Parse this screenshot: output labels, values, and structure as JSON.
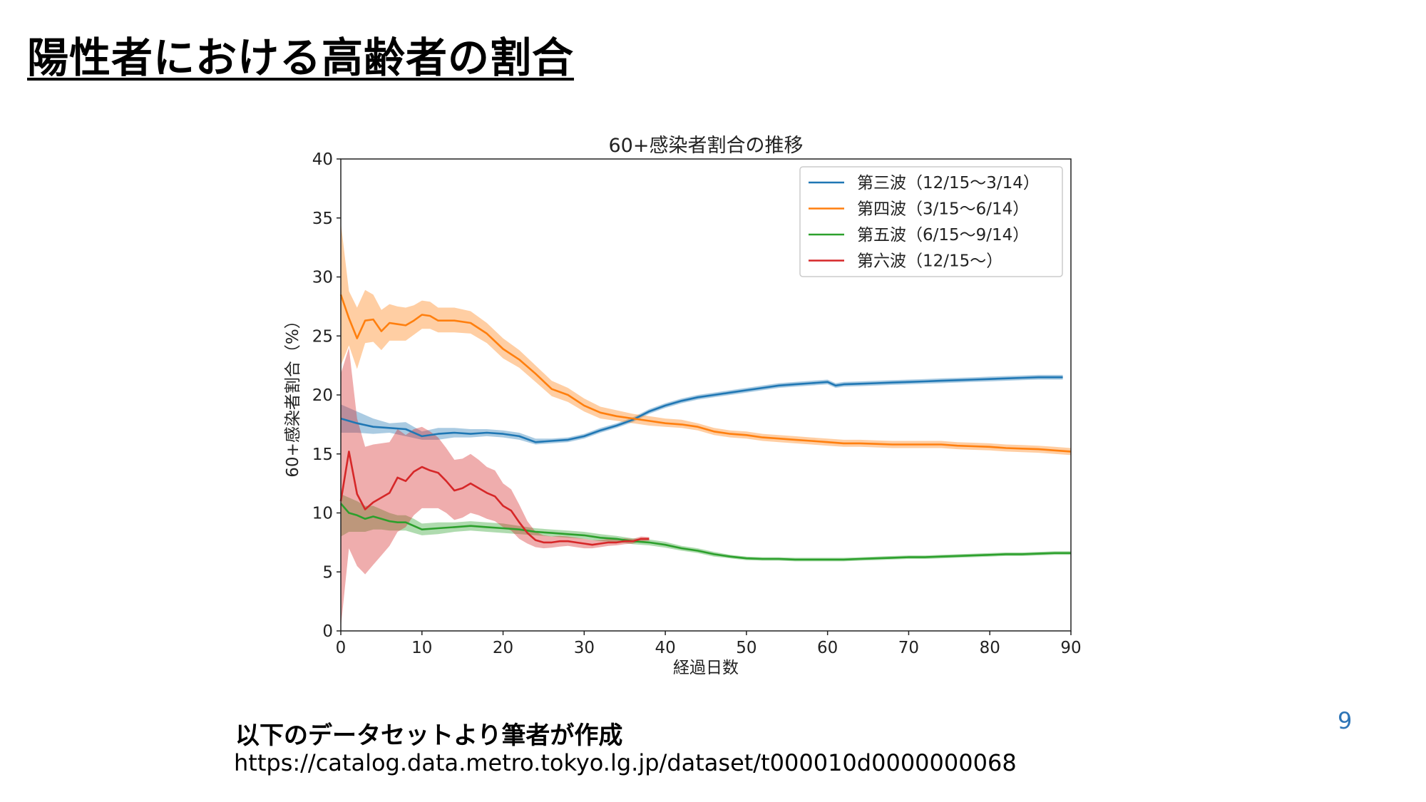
{
  "slide": {
    "title": "陽性者における高齢者の割合",
    "source_label": "以下のデータセットより筆者が作成",
    "source_url": "https://catalog.data.metro.tokyo.lg.jp/dataset/t000010d0000000068",
    "page_number": "9"
  },
  "chart_data": {
    "type": "line",
    "title": "60+感染者割合の推移",
    "xlabel": "経過日数",
    "ylabel": "60+感染者割合（%）",
    "xlim": [
      0,
      90
    ],
    "ylim": [
      0,
      40
    ],
    "xticks": [
      0,
      10,
      20,
      30,
      40,
      50,
      60,
      70,
      80,
      90
    ],
    "yticks": [
      0,
      5,
      10,
      15,
      20,
      25,
      30,
      35,
      40
    ],
    "grid": false,
    "legend_position": "top-right",
    "series": [
      {
        "name": "第三波（12/15〜3/14）",
        "color": "#1f77b4",
        "x": [
          0,
          2,
          4,
          6,
          8,
          10,
          12,
          14,
          16,
          18,
          20,
          22,
          24,
          26,
          28,
          30,
          32,
          34,
          36,
          38,
          40,
          42,
          44,
          46,
          48,
          50,
          52,
          54,
          56,
          58,
          60,
          61,
          62,
          64,
          66,
          68,
          70,
          72,
          74,
          76,
          78,
          80,
          82,
          84,
          86,
          88,
          89
        ],
        "y": [
          18.0,
          17.6,
          17.3,
          17.2,
          17.1,
          16.5,
          16.7,
          16.8,
          16.7,
          16.8,
          16.7,
          16.5,
          16.0,
          16.1,
          16.2,
          16.5,
          17.0,
          17.4,
          17.9,
          18.6,
          19.1,
          19.5,
          19.8,
          20.0,
          20.2,
          20.4,
          20.6,
          20.8,
          20.9,
          21.0,
          21.1,
          20.8,
          20.9,
          20.95,
          21.0,
          21.05,
          21.1,
          21.15,
          21.2,
          21.25,
          21.3,
          21.35,
          21.4,
          21.45,
          21.5,
          21.5,
          21.5
        ],
        "lower": [
          16.8,
          16.8,
          16.7,
          16.8,
          16.5,
          16.2,
          16.2,
          16.4,
          16.4,
          16.5,
          16.4,
          16.2,
          15.8,
          15.9,
          16.0,
          16.3,
          16.8,
          17.2,
          17.7,
          18.4,
          18.9,
          19.3,
          19.6,
          19.8,
          20.0,
          20.2,
          20.4,
          20.6,
          20.7,
          20.8,
          20.9,
          20.6,
          20.7,
          20.75,
          20.8,
          20.85,
          20.9,
          20.95,
          21.0,
          21.05,
          21.1,
          21.15,
          21.2,
          21.25,
          21.3,
          21.3,
          21.3
        ],
        "upper": [
          19.2,
          18.6,
          18.0,
          17.6,
          17.7,
          16.9,
          17.2,
          17.2,
          17.1,
          17.1,
          17.0,
          16.8,
          16.3,
          16.3,
          16.4,
          16.7,
          17.2,
          17.6,
          18.1,
          18.8,
          19.3,
          19.7,
          20.0,
          20.2,
          20.4,
          20.6,
          20.8,
          21.0,
          21.1,
          21.2,
          21.3,
          21.0,
          21.1,
          21.15,
          21.2,
          21.25,
          21.3,
          21.35,
          21.4,
          21.45,
          21.5,
          21.55,
          21.6,
          21.65,
          21.7,
          21.7,
          21.7
        ]
      },
      {
        "name": "第四波（3/15〜6/14）",
        "color": "#ff7f0e",
        "x": [
          0,
          1,
          2,
          3,
          4,
          5,
          6,
          7,
          8,
          9,
          10,
          11,
          12,
          14,
          16,
          18,
          20,
          22,
          24,
          26,
          28,
          30,
          32,
          34,
          36,
          38,
          40,
          42,
          44,
          46,
          48,
          50,
          52,
          54,
          56,
          58,
          60,
          62,
          64,
          66,
          68,
          70,
          72,
          74,
          76,
          78,
          80,
          82,
          84,
          86,
          88,
          90
        ],
        "y": [
          28.5,
          26.5,
          24.8,
          26.3,
          26.4,
          25.4,
          26.1,
          26.0,
          25.9,
          26.3,
          26.8,
          26.7,
          26.3,
          26.3,
          26.1,
          25.2,
          23.9,
          23.0,
          21.8,
          20.5,
          20.0,
          19.1,
          18.5,
          18.2,
          18.0,
          17.8,
          17.6,
          17.5,
          17.3,
          16.9,
          16.7,
          16.6,
          16.4,
          16.3,
          16.2,
          16.1,
          16.0,
          15.9,
          15.9,
          15.85,
          15.8,
          15.8,
          15.8,
          15.8,
          15.7,
          15.65,
          15.6,
          15.5,
          15.45,
          15.4,
          15.3,
          15.2
        ],
        "lower": [
          22.5,
          24.2,
          22.2,
          24.4,
          24.5,
          23.8,
          24.6,
          24.6,
          24.6,
          25.1,
          25.6,
          25.6,
          25.3,
          25.3,
          25.2,
          24.4,
          23.1,
          22.3,
          21.1,
          19.9,
          19.4,
          18.6,
          18.0,
          17.8,
          17.6,
          17.4,
          17.3,
          17.2,
          17.0,
          16.6,
          16.4,
          16.3,
          16.1,
          16.0,
          15.9,
          15.8,
          15.7,
          15.6,
          15.6,
          15.55,
          15.5,
          15.5,
          15.5,
          15.5,
          15.4,
          15.35,
          15.3,
          15.2,
          15.15,
          15.1,
          15.0,
          14.9
        ],
        "upper": [
          34.6,
          28.8,
          27.4,
          28.9,
          28.5,
          27.2,
          27.7,
          27.5,
          27.4,
          27.6,
          28.0,
          27.9,
          27.4,
          27.4,
          27.1,
          26.1,
          24.8,
          23.8,
          22.5,
          21.2,
          20.6,
          19.7,
          19.0,
          18.7,
          18.4,
          18.2,
          18.0,
          17.9,
          17.6,
          17.2,
          17.0,
          16.9,
          16.7,
          16.6,
          16.5,
          16.4,
          16.3,
          16.2,
          16.2,
          16.15,
          16.1,
          16.1,
          16.1,
          16.1,
          16.0,
          15.95,
          15.9,
          15.8,
          15.75,
          15.7,
          15.6,
          15.5
        ]
      },
      {
        "name": "第五波（6/15〜9/14）",
        "color": "#2ca02c",
        "x": [
          0,
          1,
          2,
          3,
          4,
          5,
          6,
          7,
          8,
          9,
          10,
          12,
          14,
          16,
          18,
          20,
          22,
          24,
          26,
          28,
          30,
          32,
          34,
          36,
          38,
          40,
          42,
          44,
          46,
          48,
          50,
          52,
          54,
          56,
          58,
          60,
          62,
          64,
          66,
          68,
          70,
          72,
          74,
          76,
          78,
          80,
          82,
          84,
          86,
          88,
          90
        ],
        "y": [
          10.8,
          10.0,
          9.8,
          9.5,
          9.7,
          9.5,
          9.3,
          9.2,
          9.2,
          8.9,
          8.6,
          8.7,
          8.8,
          8.9,
          8.8,
          8.7,
          8.6,
          8.4,
          8.3,
          8.2,
          8.1,
          7.9,
          7.8,
          7.6,
          7.5,
          7.3,
          7.0,
          6.8,
          6.5,
          6.3,
          6.15,
          6.1,
          6.1,
          6.05,
          6.05,
          6.05,
          6.05,
          6.1,
          6.15,
          6.2,
          6.25,
          6.25,
          6.3,
          6.35,
          6.4,
          6.45,
          6.5,
          6.5,
          6.55,
          6.6,
          6.6
        ],
        "lower": [
          8.0,
          8.4,
          8.4,
          8.4,
          8.6,
          8.6,
          8.5,
          8.5,
          8.5,
          8.3,
          8.1,
          8.2,
          8.4,
          8.5,
          8.4,
          8.3,
          8.2,
          8.1,
          8.0,
          7.9,
          7.8,
          7.6,
          7.55,
          7.35,
          7.25,
          7.05,
          6.8,
          6.6,
          6.3,
          6.15,
          6.0,
          5.95,
          5.95,
          5.9,
          5.9,
          5.9,
          5.9,
          5.95,
          6.0,
          6.05,
          6.1,
          6.1,
          6.15,
          6.2,
          6.25,
          6.3,
          6.35,
          6.35,
          6.4,
          6.45,
          6.45
        ],
        "upper": [
          11.6,
          11.3,
          11.0,
          10.6,
          10.6,
          10.3,
          10.0,
          9.8,
          9.8,
          9.5,
          9.1,
          9.2,
          9.2,
          9.3,
          9.2,
          9.1,
          8.9,
          8.7,
          8.6,
          8.5,
          8.4,
          8.2,
          8.05,
          7.85,
          7.75,
          7.55,
          7.2,
          7.0,
          6.7,
          6.45,
          6.3,
          6.25,
          6.25,
          6.2,
          6.2,
          6.2,
          6.2,
          6.25,
          6.3,
          6.35,
          6.4,
          6.4,
          6.45,
          6.5,
          6.55,
          6.6,
          6.65,
          6.65,
          6.7,
          6.75,
          6.75
        ]
      },
      {
        "name": "第六波（12/15〜）",
        "color": "#d62728",
        "x": [
          0,
          1,
          2,
          3,
          4,
          5,
          6,
          7,
          8,
          9,
          10,
          11,
          12,
          13,
          14,
          15,
          16,
          17,
          18,
          19,
          20,
          21,
          22,
          23,
          24,
          25,
          26,
          27,
          28,
          29,
          30,
          31,
          32,
          33,
          34,
          35,
          36,
          37,
          38
        ],
        "y": [
          11.0,
          15.2,
          11.6,
          10.3,
          10.9,
          11.3,
          11.7,
          13.0,
          12.7,
          13.5,
          13.9,
          13.6,
          13.4,
          12.7,
          11.9,
          12.1,
          12.5,
          12.1,
          11.7,
          11.4,
          10.6,
          10.2,
          9.2,
          8.3,
          7.7,
          7.5,
          7.5,
          7.6,
          7.6,
          7.5,
          7.4,
          7.3,
          7.4,
          7.5,
          7.5,
          7.6,
          7.6,
          7.8,
          7.8
        ],
        "lower": [
          0.3,
          7.0,
          5.5,
          4.8,
          5.6,
          6.4,
          7.2,
          8.4,
          8.8,
          9.8,
          10.4,
          10.4,
          10.4,
          10.0,
          9.4,
          9.6,
          10.0,
          9.8,
          9.5,
          9.3,
          8.8,
          8.5,
          7.8,
          7.4,
          7.1,
          7.0,
          7.05,
          7.15,
          7.2,
          7.1,
          7.0,
          7.0,
          7.1,
          7.2,
          7.25,
          7.35,
          7.4,
          7.6,
          7.65
        ],
        "upper": [
          21.8,
          24.0,
          18.0,
          15.6,
          15.8,
          15.9,
          16.0,
          17.1,
          16.6,
          17.1,
          17.3,
          16.9,
          16.4,
          15.5,
          14.5,
          14.6,
          15.0,
          14.5,
          13.9,
          13.6,
          12.5,
          12.0,
          10.7,
          9.3,
          8.4,
          8.1,
          8.0,
          8.05,
          8.0,
          7.9,
          7.8,
          7.7,
          7.7,
          7.8,
          7.75,
          7.85,
          7.8,
          8.0,
          7.95
        ]
      }
    ]
  }
}
